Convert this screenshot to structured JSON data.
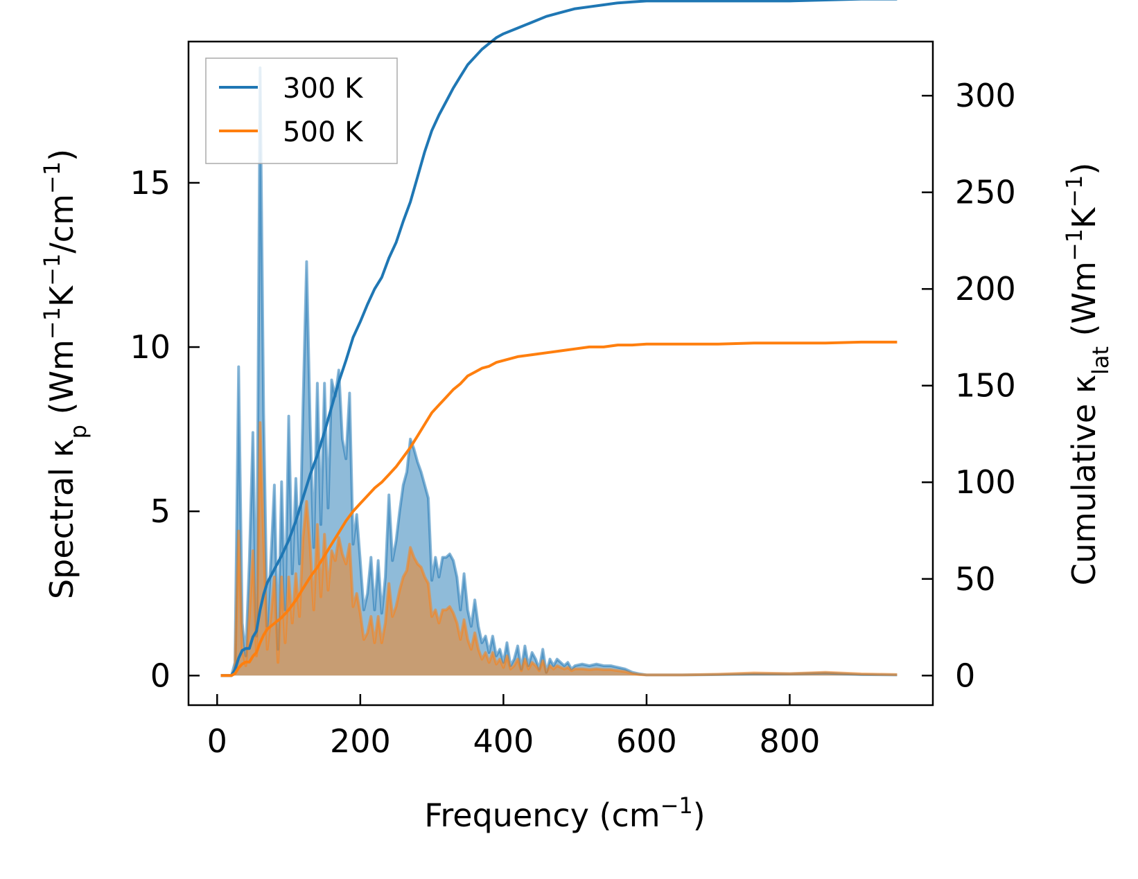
{
  "colors": {
    "series_300K": "#1f77b4",
    "series_500K": "#ff7f0e",
    "axes": "#000000",
    "legend_border": "#aaaaaa"
  },
  "chart_data": {
    "type": "line",
    "title": "",
    "grid": false,
    "legend_placement": "top-left",
    "xlabel": {
      "text": "Frequency (cm",
      "sup": "−1",
      "close": ")"
    },
    "ylabel_left": {
      "parts": [
        [
          "t",
          "Spectral κ"
        ],
        [
          "sub",
          "p"
        ],
        [
          "t",
          " (Wm"
        ],
        [
          "sup",
          "−1"
        ],
        [
          "t",
          "K"
        ],
        [
          "sup",
          "−1"
        ],
        [
          "t",
          "/cm"
        ],
        [
          "sup",
          "−1"
        ],
        [
          "t",
          ")"
        ]
      ]
    },
    "ylabel_right": {
      "parts": [
        [
          "t",
          "Cumulative κ"
        ],
        [
          "sub",
          "lat"
        ],
        [
          "t",
          " (Wm"
        ],
        [
          "sup",
          "−1"
        ],
        [
          "t",
          "K"
        ],
        [
          "sup",
          "−1"
        ],
        [
          "t",
          ")"
        ]
      ]
    },
    "xlim": [
      -40,
      1000
    ],
    "ylim_left": [
      -0.9,
      19.3
    ],
    "ylim_right": [
      -15.3,
      328
    ],
    "xticks": [
      0,
      200,
      400,
      600,
      800
    ],
    "xtick_labels": [
      "0",
      "200",
      "400",
      "600",
      "800"
    ],
    "yticks_left": [
      0,
      5,
      10,
      15
    ],
    "ytick_labels_left": [
      "0",
      "5",
      "10",
      "15"
    ],
    "yticks_right": [
      0,
      50,
      100,
      150,
      200,
      250,
      300
    ],
    "ytick_labels_right": [
      "0",
      "50",
      "100",
      "150",
      "200",
      "250",
      "300"
    ],
    "legend": [
      {
        "label": "300 K",
        "color": "#1f77b4"
      },
      {
        "label": "500 K",
        "color": "#ff7f0e"
      }
    ],
    "spectral_axis": "left",
    "cumulative_axis": "right",
    "spectral_series": [
      {
        "name": "300 K",
        "color": "#1f77b4",
        "x": [
          5,
          20,
          25,
          30,
          35,
          40,
          45,
          50,
          55,
          60,
          65,
          70,
          75,
          80,
          85,
          90,
          95,
          100,
          105,
          110,
          115,
          120,
          125,
          130,
          135,
          140,
          145,
          150,
          155,
          160,
          165,
          170,
          175,
          180,
          185,
          190,
          195,
          200,
          205,
          210,
          215,
          220,
          225,
          230,
          235,
          240,
          245,
          250,
          255,
          260,
          265,
          270,
          275,
          280,
          285,
          290,
          295,
          300,
          305,
          310,
          315,
          320,
          325,
          330,
          335,
          340,
          345,
          350,
          355,
          360,
          365,
          370,
          375,
          380,
          385,
          390,
          395,
          400,
          405,
          410,
          415,
          420,
          425,
          430,
          435,
          440,
          445,
          450,
          455,
          460,
          465,
          470,
          475,
          480,
          485,
          490,
          495,
          500,
          510,
          520,
          530,
          540,
          550,
          560,
          570,
          580,
          590,
          600,
          620,
          650,
          700,
          750,
          800,
          850,
          900,
          950
        ],
        "y": [
          0,
          0,
          0.4,
          9.4,
          1.6,
          0.6,
          3.5,
          7.4,
          1.2,
          18.5,
          8.0,
          1.5,
          3.5,
          5.8,
          0.8,
          5.9,
          2.0,
          7.9,
          3.1,
          6.0,
          3.4,
          8.2,
          12.6,
          7.6,
          3.9,
          8.9,
          4.6,
          8.9,
          5.1,
          9.0,
          8.5,
          9.3,
          7.2,
          6.6,
          8.6,
          4.0,
          4.9,
          3.5,
          2.0,
          2.5,
          3.6,
          2.0,
          3.5,
          1.9,
          3.0,
          5.5,
          3.5,
          4.1,
          5.0,
          5.8,
          6.2,
          7.2,
          6.9,
          6.5,
          6.2,
          5.8,
          5.4,
          2.9,
          3.6,
          3.0,
          3.6,
          3.6,
          3.7,
          3.5,
          3.0,
          2.0,
          3.1,
          2.0,
          1.5,
          2.3,
          1.5,
          1.0,
          1.2,
          0.7,
          1.2,
          0.6,
          0.8,
          0.4,
          1.0,
          0.3,
          0.5,
          0.9,
          0.2,
          0.9,
          0.3,
          0.7,
          0.5,
          0.2,
          0.8,
          0.1,
          0.5,
          0.3,
          0.5,
          0.4,
          0.3,
          0.4,
          0.2,
          0.3,
          0.35,
          0.3,
          0.35,
          0.3,
          0.3,
          0.25,
          0.2,
          0.1,
          0.05,
          0.02,
          0.02,
          0.02,
          0.03,
          0.05,
          0.05,
          0.08,
          0.03,
          0.02
        ]
      },
      {
        "name": "500 K",
        "color": "#ff7f0e",
        "x": [
          5,
          20,
          25,
          30,
          35,
          40,
          45,
          50,
          55,
          60,
          65,
          70,
          75,
          80,
          85,
          90,
          95,
          100,
          105,
          110,
          115,
          120,
          125,
          130,
          135,
          140,
          145,
          150,
          155,
          160,
          165,
          170,
          175,
          180,
          185,
          190,
          195,
          200,
          205,
          210,
          215,
          220,
          225,
          230,
          235,
          240,
          245,
          250,
          255,
          260,
          265,
          270,
          275,
          280,
          285,
          290,
          295,
          300,
          305,
          310,
          315,
          320,
          325,
          330,
          335,
          340,
          345,
          350,
          355,
          360,
          365,
          370,
          375,
          380,
          385,
          390,
          395,
          400,
          405,
          410,
          415,
          420,
          425,
          430,
          435,
          440,
          445,
          450,
          455,
          460,
          465,
          470,
          475,
          480,
          485,
          490,
          495,
          500,
          510,
          520,
          530,
          540,
          550,
          560,
          570,
          580,
          590,
          600,
          620,
          650,
          700,
          750,
          800,
          850,
          900,
          950
        ],
        "y": [
          0,
          0,
          0.2,
          4.4,
          0.8,
          0.3,
          1.8,
          3.8,
          0.6,
          7.7,
          4.1,
          0.8,
          1.8,
          3.0,
          0.4,
          3.0,
          1.0,
          3.0,
          1.6,
          3.1,
          1.8,
          4.2,
          5.3,
          3.9,
          2.0,
          4.6,
          2.4,
          4.3,
          2.6,
          3.8,
          3.5,
          4.2,
          3.7,
          3.4,
          4.0,
          2.1,
          2.5,
          1.9,
          1.1,
          1.3,
          1.8,
          1.0,
          1.8,
          1.0,
          1.6,
          2.8,
          1.8,
          2.1,
          2.6,
          3.0,
          3.2,
          3.9,
          3.6,
          3.4,
          3.3,
          3.0,
          2.8,
          1.8,
          2.0,
          1.6,
          2.0,
          2.0,
          2.1,
          1.9,
          1.6,
          1.1,
          1.7,
          1.1,
          0.8,
          1.3,
          0.8,
          0.5,
          0.7,
          0.4,
          0.7,
          0.35,
          0.5,
          0.25,
          0.6,
          0.2,
          0.3,
          0.5,
          0.15,
          0.5,
          0.2,
          0.4,
          0.3,
          0.15,
          0.45,
          0.1,
          0.3,
          0.2,
          0.3,
          0.25,
          0.2,
          0.25,
          0.15,
          0.2,
          0.2,
          0.18,
          0.2,
          0.18,
          0.18,
          0.15,
          0.12,
          0.06,
          0.03,
          0.02,
          0.02,
          0.02,
          0.04,
          0.08,
          0.06,
          0.1,
          0.05,
          0.03
        ]
      }
    ],
    "cumulative_series": [
      {
        "name": "300 K",
        "color": "#1f77b4",
        "x": [
          5,
          20,
          25,
          30,
          35,
          40,
          45,
          50,
          55,
          60,
          65,
          70,
          80,
          90,
          100,
          110,
          120,
          130,
          140,
          150,
          160,
          170,
          180,
          190,
          200,
          210,
          220,
          230,
          240,
          250,
          260,
          270,
          280,
          290,
          300,
          310,
          320,
          330,
          340,
          350,
          360,
          370,
          380,
          390,
          400,
          420,
          440,
          460,
          480,
          500,
          520,
          540,
          560,
          580,
          600,
          650,
          700,
          750,
          800,
          850,
          900,
          950
        ],
        "y": [
          0,
          0,
          3,
          9,
          13,
          14,
          14,
          20,
          23,
          34,
          42,
          48,
          55,
          62,
          70,
          80,
          92,
          104,
          114,
          126,
          139,
          152,
          163,
          175,
          183,
          192,
          200,
          206,
          216,
          224,
          235,
          245,
          258,
          271,
          282,
          290,
          297,
          304,
          310,
          316,
          320,
          324,
          327,
          330,
          332,
          335,
          338,
          341,
          343,
          345,
          346,
          347,
          348,
          348.5,
          349,
          349,
          349,
          349,
          349,
          349.5,
          350,
          350
        ]
      },
      {
        "name": "500 K",
        "color": "#ff7f0e",
        "x": [
          5,
          20,
          25,
          30,
          35,
          40,
          45,
          50,
          55,
          60,
          65,
          70,
          80,
          90,
          100,
          110,
          120,
          130,
          140,
          150,
          160,
          170,
          180,
          190,
          200,
          210,
          220,
          230,
          240,
          250,
          260,
          270,
          280,
          290,
          300,
          310,
          320,
          330,
          340,
          350,
          360,
          370,
          380,
          390,
          400,
          420,
          440,
          460,
          480,
          500,
          520,
          540,
          560,
          580,
          600,
          650,
          700,
          750,
          800,
          850,
          900,
          950
        ],
        "y": [
          0,
          0,
          1,
          4,
          6,
          7,
          7,
          10,
          12,
          17,
          21,
          24,
          27,
          30,
          34,
          39,
          45,
          51,
          56,
          62,
          68,
          74,
          80,
          85,
          89,
          93,
          97,
          100,
          104,
          108,
          113,
          118,
          124,
          130,
          136,
          140,
          144,
          148,
          151,
          155,
          157,
          159,
          160,
          162,
          163,
          165,
          166,
          167,
          168,
          169,
          170,
          170,
          171,
          171,
          171.5,
          171.5,
          171.5,
          172,
          172,
          172,
          172.5,
          172.5
        ]
      }
    ]
  }
}
